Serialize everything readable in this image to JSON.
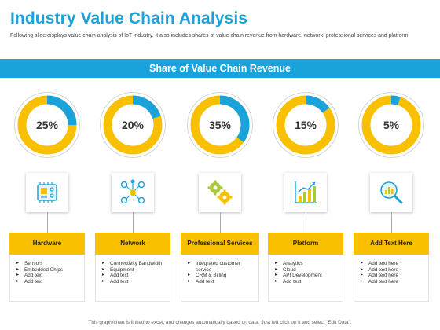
{
  "slide": {
    "title": "Industry Value Chain Analysis",
    "subtitle": "Following slide displays value chain analysis of IoT industry. It also includes shares of value chain revenue from hardware, network, professional services and platform",
    "banner": "Share of Value Chain Revenue",
    "footer": "This graph/chart is linked to excel, and changes automatically based on data. Just left click on it and select “Edit Data”."
  },
  "colors": {
    "accent_blue": "#1aa3db",
    "accent_yellow": "#f9c000",
    "ring_light": "#d4d4d4"
  },
  "columns": [
    {
      "percent": "25%",
      "header": "Hardware",
      "icon": "chip-icon",
      "items": [
        "Sensors",
        "Embedded Chips",
        "Add text",
        "Add text"
      ]
    },
    {
      "percent": "20%",
      "header": "Network",
      "icon": "network-icon",
      "items": [
        "Connectivity Bandwidth",
        "Equipment",
        "Add text",
        "Add text"
      ]
    },
    {
      "percent": "35%",
      "header": "Professional Services",
      "icon": "gears-icon",
      "items": [
        "Integrated customer service",
        "CRM & Billing",
        "Add text"
      ]
    },
    {
      "percent": "15%",
      "header": "Platform",
      "icon": "growth-chart-icon",
      "items": [
        "Analytics",
        "Cloud",
        "API Development",
        "Add text"
      ]
    },
    {
      "percent": "5%",
      "header": "Add Text Here",
      "icon": "analytics-magnifier-icon",
      "items": [
        "Add text here",
        "Add text here",
        "Add text here",
        "Add text here"
      ]
    }
  ],
  "chart_data": {
    "type": "pie",
    "title": "Share of Value Chain Revenue",
    "categories": [
      "Hardware",
      "Network",
      "Professional Services",
      "Platform",
      "Add Text Here"
    ],
    "values": [
      25,
      20,
      35,
      15,
      5
    ]
  }
}
